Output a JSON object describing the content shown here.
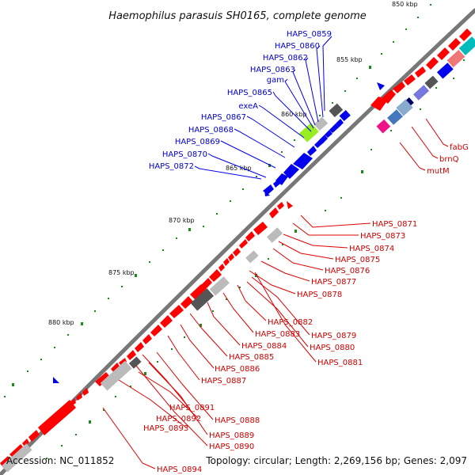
{
  "title": "Haemophilus parasuis SH0165, complete genome",
  "accession": "Accession: NC_011852",
  "summary": "Topology: circular; Length: 2,269,156 bp; Genes: 2,097",
  "kbp_labels": [
    "850 kbp",
    "855 kbp",
    "860 kbp",
    "865 kbp",
    "870 kbp",
    "875 kbp",
    "880 kbp"
  ],
  "blue_labels": [
    "HAPS_0859",
    "HAPS_0860",
    "HAPS_0862",
    "HAPS_0863",
    "gam",
    "HAPS_0865",
    "exeA",
    "HAPS_0867",
    "HAPS_0868",
    "HAPS_0869",
    "HAPS_0870",
    "HAPS_0872"
  ],
  "red_labels": [
    "fabG",
    "brnQ",
    "mutM",
    "HAPS_0871",
    "HAPS_0873",
    "HAPS_0874",
    "HAPS_0875",
    "HAPS_0876",
    "HAPS_0877",
    "HAPS_0878",
    "HAPS_0882",
    "HAPS_0879",
    "HAPS_0883",
    "HAPS_0880",
    "HAPS_0884",
    "HAPS_0885",
    "HAPS_0881",
    "HAPS_0886",
    "HAPS_0887",
    "HAPS_0891",
    "HAPS_0892",
    "HAPS_0888",
    "HAPS_0893",
    "HAPS_0889",
    "HAPS_0890",
    "HAPS_0894"
  ],
  "colors": {
    "backbone": "#808080",
    "gene_red": "#ff0000",
    "gene_blue": "#0000ee",
    "label_blue": "#0000cc",
    "label_red": "#cc0000",
    "tick_green": "#1a8a1a"
  }
}
